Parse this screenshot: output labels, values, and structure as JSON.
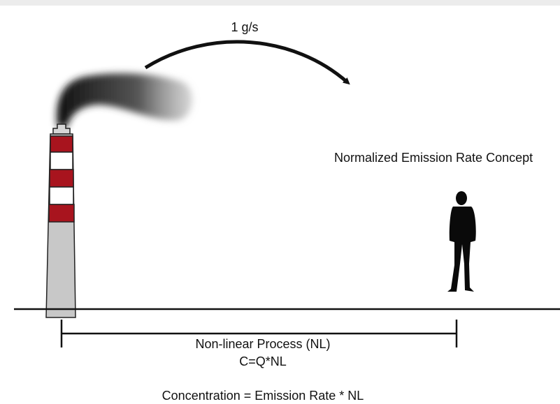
{
  "labels": {
    "flow_rate": "1 g/s",
    "concept": "Normalized Emission Rate Concept",
    "process": "Non-linear Process (NL)",
    "equation": "C=Q*NL",
    "formula": "Concentration = Emission Rate * NL"
  }
}
